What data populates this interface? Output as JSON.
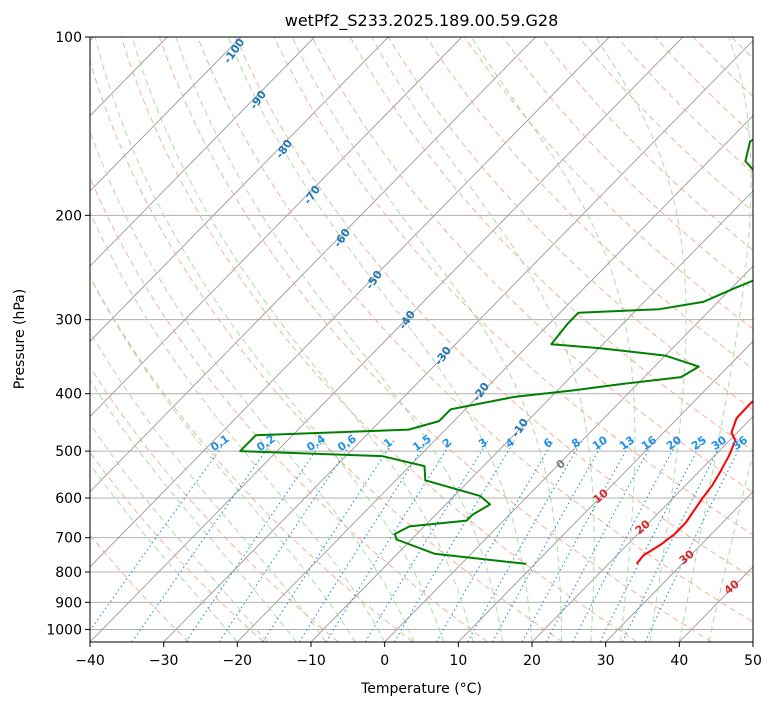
{
  "chart_data": {
    "type": "line",
    "subtype": "skew-t log-p",
    "title": "wetPf2_S233.2025.189.00.59.G28",
    "xlabel": "Temperature (°C)",
    "ylabel": "Pressure (hPa)",
    "xlim": [
      -40,
      50
    ],
    "ylim": [
      1050,
      100
    ],
    "x_scale": "skewed-linear",
    "y_scale": "log",
    "x_ticks": [
      -40,
      -30,
      -20,
      -10,
      0,
      10,
      20,
      30,
      40,
      50
    ],
    "x_tick_labels": [
      "−40",
      "−30",
      "−20",
      "−10",
      "0",
      "10",
      "20",
      "30",
      "40",
      "50"
    ],
    "y_ticks": [
      1000,
      900,
      800,
      700,
      600,
      500,
      400,
      300,
      200,
      100
    ],
    "y_tick_labels": [
      "1000",
      "900",
      "800",
      "700",
      "600",
      "500",
      "400",
      "300",
      "200",
      "100"
    ],
    "grid": true,
    "colors": {
      "temperature": "#ff0000",
      "dewpoint": "#008000",
      "isotherm": "#9a9a9a",
      "dry_adiabat": "#f4a582",
      "moist_adiabat": "#a6d6a0",
      "mixing_ratio": "#1f8fe6",
      "label_dry": "#d62728",
      "label_moist": "#1f77b4"
    },
    "series": [
      {
        "name": "",
        "role": "temperature",
        "points": [
          [
            23.8,
            775
          ],
          [
            23.6,
            750
          ],
          [
            24.5,
            720
          ],
          [
            25.0,
            690
          ],
          [
            25.0,
            660
          ],
          [
            24.5,
            630
          ],
          [
            24.0,
            600
          ],
          [
            23.6,
            570
          ],
          [
            23.0,
            545
          ],
          [
            22.0,
            510
          ],
          [
            20.8,
            480
          ],
          [
            19.2,
            465
          ],
          [
            18.0,
            440
          ],
          [
            17.9,
            415
          ],
          [
            18.5,
            390
          ],
          [
            17.5,
            360
          ],
          [
            16.5,
            320
          ],
          [
            16.0,
            300
          ],
          [
            13.0,
            270
          ],
          [
            10.0,
            245
          ],
          [
            7.0,
            220
          ],
          [
            5.8,
            200
          ],
          [
            5.8,
            185
          ],
          [
            7.2,
            170
          ],
          [
            10.0,
            155
          ],
          [
            13.5,
            140
          ],
          [
            15.5,
            128
          ],
          [
            16.5,
            118
          ],
          [
            19.0,
            110
          ],
          [
            20.0,
            100
          ]
        ]
      },
      {
        "name": "",
        "role": "dewpoint",
        "points": [
          [
            8.8,
            775
          ],
          [
            -5.0,
            745
          ],
          [
            -12.0,
            705
          ],
          [
            -13.0,
            690
          ],
          [
            -12.0,
            670
          ],
          [
            -5.0,
            655
          ],
          [
            -5.0,
            640
          ],
          [
            -4.0,
            615
          ],
          [
            -6.5,
            595
          ],
          [
            -16.0,
            560
          ],
          [
            -18.0,
            530
          ],
          [
            -25.0,
            510
          ],
          [
            -45.0,
            500
          ],
          [
            -45.0,
            470
          ],
          [
            -25.0,
            460
          ],
          [
            -22.0,
            445
          ],
          [
            -22.0,
            425
          ],
          [
            -15.0,
            405
          ],
          [
            -8.0,
            395
          ],
          [
            -2.0,
            385
          ],
          [
            5.0,
            375
          ],
          [
            6.0,
            360
          ],
          [
            0.0,
            345
          ],
          [
            -10.0,
            335
          ],
          [
            -17.0,
            330
          ],
          [
            -17.5,
            305
          ],
          [
            -17.5,
            292
          ],
          [
            -7.0,
            288
          ],
          [
            -2.0,
            280
          ],
          [
            0.5,
            265
          ],
          [
            3.5,
            250
          ],
          [
            5.5,
            235
          ],
          [
            5.0,
            220
          ],
          [
            3.0,
            205
          ],
          [
            -3.0,
            190
          ],
          [
            -10.0,
            175
          ],
          [
            -15.0,
            162
          ],
          [
            -17.0,
            150
          ],
          [
            -13.0,
            136
          ],
          [
            -9.0,
            125
          ],
          [
            -5.0,
            115
          ],
          [
            -2.0,
            107
          ],
          [
            0.0,
            100
          ]
        ]
      }
    ],
    "dry_adiabat_labels": [
      "0",
      "10",
      "20",
      "30",
      "40"
    ],
    "moist_adiabat_labels": [
      "-100",
      "-90",
      "-80",
      "-70",
      "-60",
      "-50",
      "-40",
      "-30",
      "-20",
      "-10"
    ],
    "mixing_ratio_labels": [
      "0.1",
      "0.2",
      "0.4",
      "0.6",
      "1",
      "1.5",
      "2",
      "3",
      "4",
      "6",
      "8",
      "10",
      "13",
      "16",
      "20",
      "25",
      "30",
      "36"
    ]
  }
}
